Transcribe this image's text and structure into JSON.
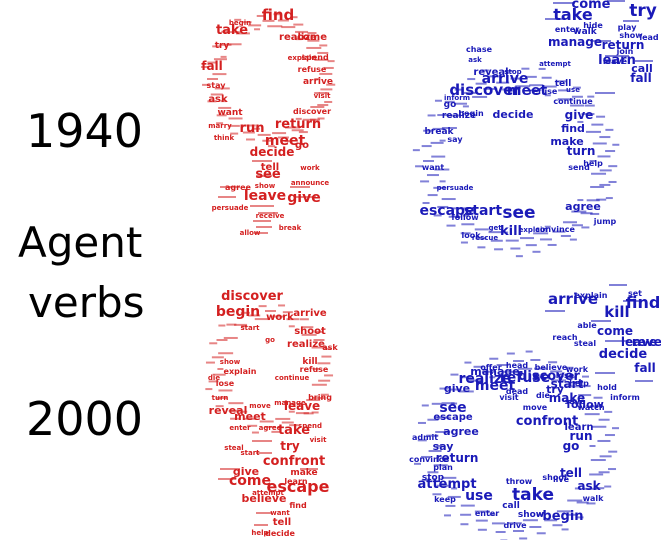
{
  "labels": {
    "year_top": "1940",
    "agent": "Agent",
    "verbs": "verbs",
    "year_bottom": "2000"
  },
  "colors": {
    "female": "#d42020",
    "male": "#1a1ab8"
  },
  "clouds": {
    "female_1940": {
      "icon": "female-symbol",
      "words": [
        "find",
        "take",
        "realize",
        "come",
        "try",
        "fall",
        "ask",
        "run",
        "return",
        "meet",
        "decide",
        "go",
        "see",
        "give",
        "leave",
        "tell",
        "arrive",
        "discover",
        "refuse",
        "agree",
        "want",
        "spend",
        "marry",
        "stay",
        "allow",
        "announce",
        "explain",
        "visit",
        "receive",
        "persuade",
        "begin",
        "show",
        "think",
        "work",
        "break"
      ]
    },
    "male_1940": {
      "icon": "male-symbol",
      "words": [
        "take",
        "try",
        "come",
        "return",
        "manage",
        "fall",
        "learn",
        "call",
        "reveal",
        "arrive",
        "discover",
        "meet",
        "decide",
        "give",
        "find",
        "make",
        "turn",
        "see",
        "start",
        "escape",
        "kill",
        "agree",
        "realize",
        "tell",
        "go",
        "leave",
        "begin",
        "play",
        "refuse",
        "want",
        "follow",
        "look",
        "send",
        "walk",
        "enter",
        "hide",
        "lead",
        "show",
        "say",
        "continue",
        "join",
        "break",
        "help",
        "jump",
        "convince",
        "chase",
        "rescue",
        "ask",
        "get",
        "use",
        "stop",
        "explain",
        "attempt",
        "persuade",
        "inform",
        "appear"
      ]
    },
    "female_2000": {
      "icon": "female-symbol",
      "words": [
        "discover",
        "begin",
        "arrive",
        "work",
        "shoot",
        "realize",
        "ask",
        "kill",
        "show",
        "explain",
        "lose",
        "turn",
        "refuse",
        "bring",
        "reveal",
        "meet",
        "leave",
        "take",
        "try",
        "confront",
        "escape",
        "give",
        "come",
        "believe",
        "find",
        "tell",
        "decide",
        "make",
        "learn",
        "manage",
        "enter",
        "attempt",
        "help",
        "want",
        "start",
        "visit",
        "die",
        "go",
        "continue",
        "start",
        "agree",
        "spend",
        "steal",
        "move"
      ]
    },
    "male_2000": {
      "icon": "male-symbol",
      "words": [
        "arrive",
        "find",
        "kill",
        "reveal",
        "come",
        "decide",
        "fall",
        "leave",
        "manage",
        "realize",
        "meet",
        "discover",
        "refuse",
        "start",
        "make",
        "try",
        "give",
        "see",
        "agree",
        "return",
        "confront",
        "run",
        "ask",
        "go",
        "tell",
        "take",
        "use",
        "attempt",
        "begin",
        "say",
        "escape",
        "learn",
        "follow",
        "stop",
        "walk",
        "show",
        "drive",
        "call",
        "save",
        "able",
        "help",
        "die",
        "explain",
        "set",
        "inform",
        "lose",
        "believe",
        "watch",
        "hold",
        "convince",
        "live",
        "move",
        "offer",
        "head",
        "shoot",
        "reach",
        "enter",
        "plan",
        "work",
        "visit",
        "throw",
        "dead",
        "admit",
        "keep",
        "steal"
      ]
    }
  }
}
